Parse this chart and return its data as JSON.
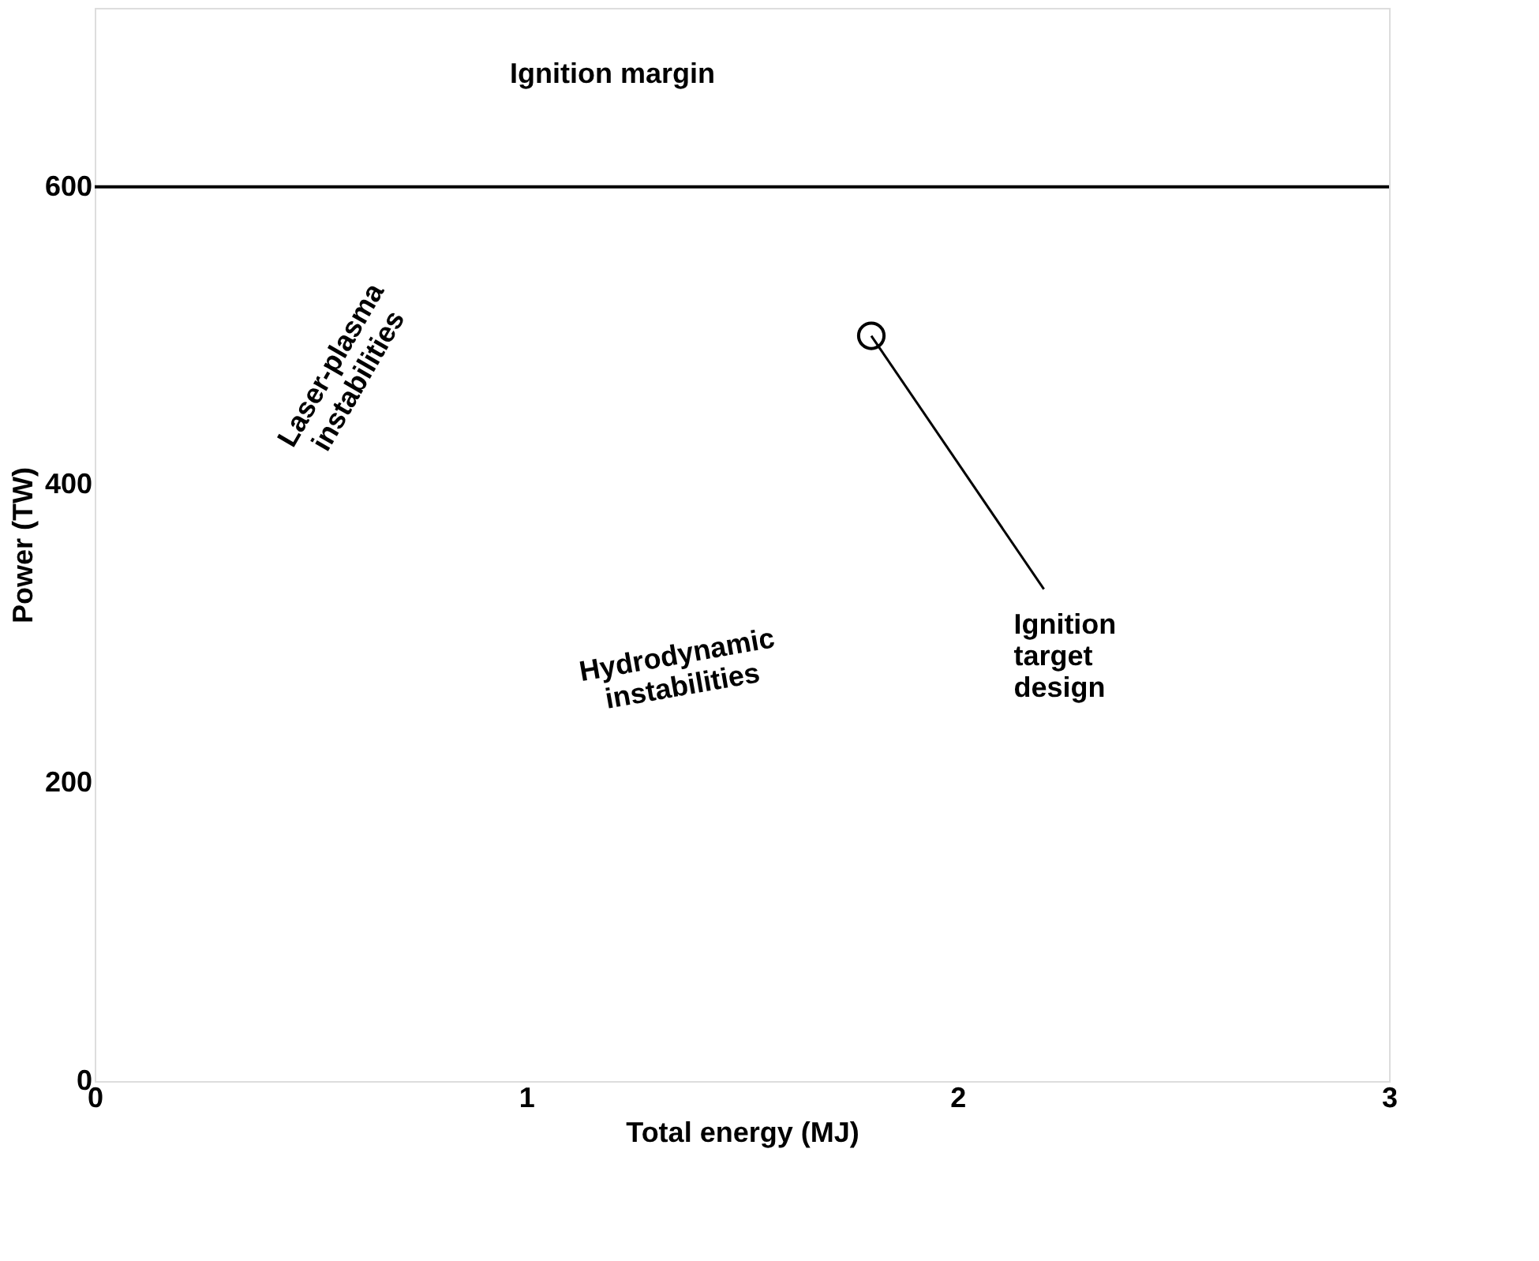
{
  "chart_data": {
    "type": "scatter",
    "xlabel": "Total energy (MJ)",
    "ylabel": "Power (TW)",
    "x": [
      1.8
    ],
    "values": [
      500
    ],
    "color": "#000000",
    "marker": "circle",
    "xlim": [
      0,
      3
    ],
    "xticks": [
      0,
      1,
      2,
      3
    ],
    "ylim": [
      0,
      720
    ],
    "yticks": [
      0,
      200,
      400,
      600
    ],
    "grid": false,
    "ref_lines": [
      {
        "axis": "y",
        "value": 600,
        "label": null,
        "color": "#000000"
      }
    ],
    "annotations": [
      "Ignition margin",
      "Laser-plasma instabilities",
      "Hydrodynamic instabilities",
      {
        "text": "Ignition target design",
        "x": 1.8,
        "y": 500
      }
    ]
  }
}
